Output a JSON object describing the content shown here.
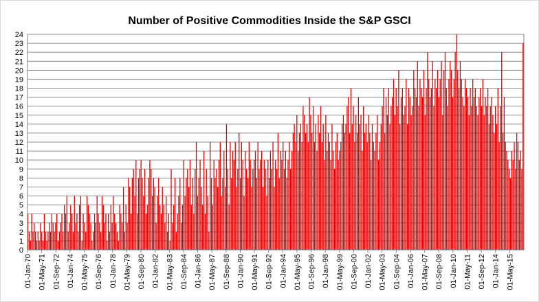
{
  "chart_data": {
    "type": "bar",
    "title": "Number of Positive  Commodities Inside  the S&P GSCI",
    "xlabel": "",
    "ylabel": "",
    "ylim": [
      0,
      24
    ],
    "y_ticks": [
      0,
      1,
      2,
      3,
      4,
      5,
      6,
      7,
      8,
      9,
      10,
      11,
      12,
      13,
      14,
      15,
      16,
      17,
      18,
      19,
      20,
      21,
      22,
      23,
      24
    ],
    "grid": true,
    "legend": "none",
    "bar_color": "#e00000",
    "x_start": "Jan-1970",
    "x_end": "Dec-2015",
    "x_tick_labels": [
      "01-Jan-70",
      "01-May-71",
      "01-Sep-72",
      "01-Jan-74",
      "01-May-75",
      "01-Sep-76",
      "01-Jan-78",
      "01-May-79",
      "01-Sep-80",
      "01-Jan-82",
      "01-May-83",
      "01-Sep-84",
      "01-Jan-86",
      "01-May-87",
      "01-Sep-88",
      "01-Jan-90",
      "01-May-91",
      "01-Sep-92",
      "01-Jan-94",
      "01-May-95",
      "01-Sep-96",
      "01-Jan-98",
      "01-May-99",
      "01-Sep-00",
      "01-Jan-02",
      "01-May-03",
      "01-Sep-04",
      "01-Jan-06",
      "01-May-07",
      "01-Sep-08",
      "01-Jan-10",
      "01-May-11",
      "01-Sep-12",
      "01-Jan-14",
      "01-May-15"
    ],
    "series": [
      {
        "values": [
          4,
          2,
          1,
          4,
          2,
          3,
          2,
          1,
          2,
          1,
          3,
          2,
          1,
          4,
          2,
          1,
          2,
          3,
          2,
          4,
          3,
          2,
          3,
          4,
          1,
          2,
          3,
          4,
          2,
          5,
          4,
          6,
          2,
          3,
          5,
          4,
          2,
          6,
          3,
          4,
          2,
          5,
          6,
          1,
          4,
          3,
          2,
          6,
          5,
          4,
          3,
          1,
          2,
          4,
          3,
          6,
          4,
          3,
          2,
          6,
          5,
          3,
          4,
          1,
          4,
          2,
          5,
          3,
          6,
          4,
          3,
          2,
          1,
          5,
          4,
          3,
          7,
          2,
          5,
          3,
          8,
          7,
          4,
          8,
          9,
          6,
          10,
          4,
          8,
          9,
          10,
          8,
          6,
          9,
          4,
          5,
          8,
          10,
          9,
          6,
          8,
          7,
          3,
          6,
          8,
          5,
          4,
          7,
          5,
          3,
          6,
          2,
          4,
          1,
          9,
          3,
          5,
          8,
          2,
          4,
          6,
          8,
          3,
          5,
          10,
          6,
          8,
          9,
          7,
          10,
          5,
          8,
          4,
          9,
          12,
          6,
          8,
          10,
          7,
          5,
          11,
          4,
          9,
          6,
          2,
          12,
          8,
          5,
          10,
          8,
          9,
          7,
          10,
          12,
          6,
          8,
          11,
          7,
          14,
          9,
          5,
          12,
          8,
          11,
          10,
          12,
          7,
          9,
          13,
          8,
          12,
          10,
          6,
          11,
          9,
          8,
          12,
          10,
          7,
          9,
          10,
          11,
          8,
          12,
          9,
          10,
          11,
          7,
          10,
          9,
          6,
          10,
          8,
          11,
          9,
          12,
          7,
          10,
          9,
          13,
          8,
          11,
          10,
          12,
          9,
          11,
          8,
          10,
          12,
          9,
          11,
          13,
          14,
          12,
          15,
          11,
          13,
          14,
          12,
          16,
          15,
          13,
          14,
          12,
          17,
          15,
          13,
          16,
          12,
          14,
          11,
          15,
          13,
          16,
          12,
          14,
          10,
          15,
          11,
          13,
          12,
          10,
          14,
          11,
          9,
          12,
          13,
          10,
          11,
          12,
          14,
          15,
          13,
          14,
          16,
          17,
          13,
          18,
          14,
          16,
          12,
          15,
          13,
          17,
          14,
          15,
          11,
          16,
          13,
          14,
          12,
          15,
          13,
          10,
          14,
          12,
          11,
          13,
          15,
          10,
          12,
          14,
          16,
          18,
          13,
          17,
          15,
          18,
          14,
          16,
          17,
          19,
          15,
          18,
          16,
          20,
          14,
          17,
          18,
          15,
          16,
          19,
          14,
          18,
          17,
          15,
          16,
          20,
          18,
          17,
          21,
          16,
          19,
          18,
          17,
          20,
          15,
          18,
          22,
          19,
          17,
          18,
          21,
          16,
          19,
          18,
          20,
          17,
          19,
          21,
          15,
          20,
          22,
          18,
          16,
          19,
          21,
          20,
          17,
          19,
          22,
          24,
          20,
          18,
          21,
          19,
          17,
          16,
          19,
          18,
          17,
          15,
          18,
          16,
          19,
          17,
          18,
          16,
          15,
          17,
          18,
          16,
          19,
          15,
          17,
          16,
          18,
          14,
          16,
          17,
          15,
          13,
          16,
          14,
          18,
          12,
          16,
          22,
          13,
          17,
          12,
          11,
          10,
          9,
          8,
          11,
          10,
          12,
          9,
          13,
          12,
          10,
          11,
          9,
          23
        ]
      }
    ]
  }
}
